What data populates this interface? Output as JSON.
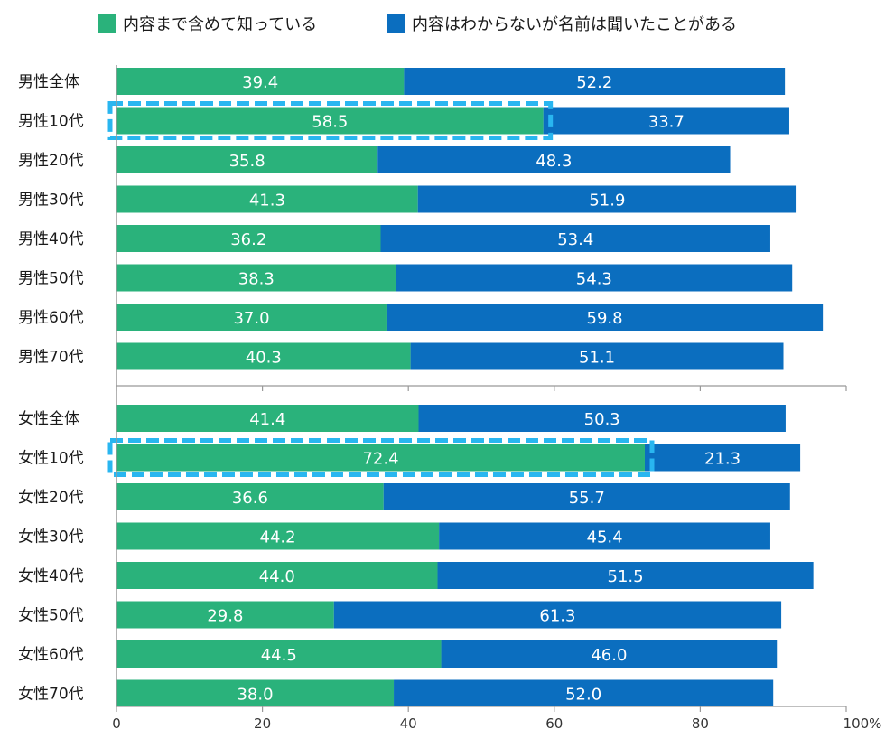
{
  "chart_data": {
    "type": "bar",
    "orientation": "horizontal",
    "stacked": true,
    "xlim": [
      0,
      100
    ],
    "x_ticks": [
      "0",
      "20",
      "40",
      "60",
      "80",
      "100%"
    ],
    "groups": [
      {
        "categories": [
          "男性全体",
          "男性10代",
          "男性20代",
          "男性30代",
          "男性40代",
          "男性50代",
          "男性60代",
          "男性70代"
        ],
        "series": [
          {
            "name": "内容まで含めて知っている",
            "values": [
              39.4,
              58.5,
              35.8,
              41.3,
              36.2,
              38.3,
              37.0,
              40.3
            ]
          },
          {
            "name": "内容はわからないが名前は聞いたことがある",
            "values": [
              52.2,
              33.7,
              48.3,
              51.9,
              53.4,
              54.3,
              59.8,
              51.1
            ]
          }
        ],
        "value_labels": [
          [
            "39.4",
            "58.5",
            "35.8",
            "41.3",
            "36.2",
            "38.3",
            "37.0",
            "40.3"
          ],
          [
            "52.2",
            "33.7",
            "48.3",
            "51.9",
            "53.4",
            "54.3",
            "59.8",
            "51.1"
          ]
        ],
        "highlighted": [
          "男性10代"
        ]
      },
      {
        "categories": [
          "女性全体",
          "女性10代",
          "女性20代",
          "女性30代",
          "女性40代",
          "女性50代",
          "女性60代",
          "女性70代"
        ],
        "series": [
          {
            "name": "内容まで含めて知っている",
            "values": [
              41.4,
              72.4,
              36.6,
              44.2,
              44.0,
              29.8,
              44.5,
              38.0
            ]
          },
          {
            "name": "内容はわからないが名前は聞いたことがある",
            "values": [
              50.3,
              21.3,
              55.7,
              45.4,
              51.5,
              61.3,
              46.0,
              52.0
            ]
          }
        ],
        "value_labels": [
          [
            "41.4",
            "72.4",
            "36.6",
            "44.2",
            "44.0",
            "29.8",
            "44.5",
            "38.0"
          ],
          [
            "50.3",
            "21.3",
            "55.7",
            "45.4",
            "51.5",
            "61.3",
            "46.0",
            "52.0"
          ]
        ],
        "highlighted": [
          "女性10代"
        ]
      }
    ],
    "legend": {
      "placement": "top",
      "items": [
        {
          "label": "内容まで含めて知っている",
          "color": "#2ab27b"
        },
        {
          "label": "内容はわからないが名前は聞いたことがある",
          "color": "#0b6ebf"
        }
      ]
    },
    "colors": {
      "series1": "#2ab27b",
      "series2": "#0b6ebf",
      "highlight": "#29b6f0",
      "axis": "#999999"
    }
  }
}
